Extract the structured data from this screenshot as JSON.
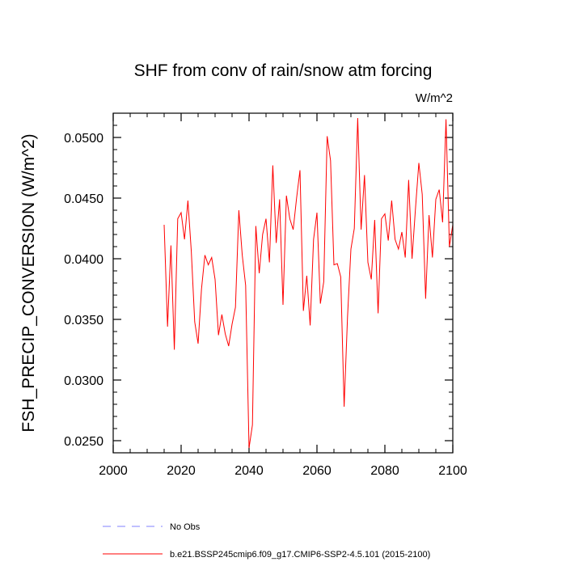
{
  "chart_data": {
    "type": "line",
    "title": "SHF from conv of rain/snow atm forcing",
    "units": "W/m^2",
    "xlabel": "",
    "ylabel": "FSH_PRECIP_CONVERSION  (W/m^2)",
    "xlim": [
      2000,
      2100
    ],
    "ylim": [
      0.024,
      0.052
    ],
    "x_ticks": [
      2000,
      2020,
      2040,
      2060,
      2080,
      2100
    ],
    "x_tick_labels": [
      "2000",
      "2020",
      "2040",
      "2060",
      "2080",
      "2100"
    ],
    "y_ticks": [
      0.025,
      0.03,
      0.035,
      0.04,
      0.045,
      0.05
    ],
    "y_tick_labels": [
      "0.0250",
      "0.0300",
      "0.0350",
      "0.0400",
      "0.0450",
      "0.0500"
    ],
    "x_minor_step": 5,
    "y_minor_step": 0.001,
    "grid": false,
    "legend_position": "bottom-left",
    "series": [
      {
        "name": "No Obs",
        "color": "#8080ff",
        "dashed": true,
        "x": [],
        "values": []
      },
      {
        "name": "b.e21.BSSP245cmip6.f09_g17.CMIP6-SSP2-4.5.101 (2015-2100)",
        "color": "#ff0000",
        "dashed": false,
        "x": [
          2015,
          2016,
          2017,
          2018,
          2019,
          2020,
          2021,
          2022,
          2023,
          2024,
          2025,
          2026,
          2027,
          2028,
          2029,
          2030,
          2031,
          2032,
          2033,
          2034,
          2035,
          2036,
          2037,
          2038,
          2039,
          2040,
          2041,
          2042,
          2043,
          2044,
          2045,
          2046,
          2047,
          2048,
          2049,
          2050,
          2051,
          2052,
          2053,
          2054,
          2055,
          2056,
          2057,
          2058,
          2059,
          2060,
          2061,
          2062,
          2063,
          2064,
          2065,
          2066,
          2067,
          2068,
          2069,
          2070,
          2071,
          2072,
          2073,
          2074,
          2075,
          2076,
          2077,
          2078,
          2079,
          2080,
          2081,
          2082,
          2083,
          2084,
          2085,
          2086,
          2087,
          2088,
          2089,
          2090,
          2091,
          2092,
          2093,
          2094,
          2095,
          2096,
          2097,
          2098,
          2099,
          2100
        ],
        "values": [
          0.0428,
          0.0344,
          0.0411,
          0.0325,
          0.0433,
          0.0438,
          0.0416,
          0.0448,
          0.0406,
          0.0348,
          0.033,
          0.0375,
          0.0403,
          0.0395,
          0.0401,
          0.0383,
          0.0337,
          0.0354,
          0.0338,
          0.0328,
          0.0346,
          0.036,
          0.044,
          0.0403,
          0.0378,
          0.0244,
          0.0263,
          0.0427,
          0.0388,
          0.042,
          0.0433,
          0.0397,
          0.0477,
          0.0413,
          0.0449,
          0.0362,
          0.0452,
          0.0433,
          0.0424,
          0.045,
          0.0473,
          0.0357,
          0.0386,
          0.0345,
          0.0416,
          0.0438,
          0.0363,
          0.0381,
          0.0501,
          0.0481,
          0.0395,
          0.0396,
          0.0385,
          0.0278,
          0.0352,
          0.0408,
          0.0425,
          0.0516,
          0.0424,
          0.0469,
          0.0397,
          0.0383,
          0.0432,
          0.0355,
          0.0433,
          0.0437,
          0.0415,
          0.0448,
          0.0416,
          0.0408,
          0.0422,
          0.0401,
          0.0465,
          0.04,
          0.0441,
          0.0479,
          0.0453,
          0.0367,
          0.0436,
          0.0401,
          0.0449,
          0.0457,
          0.043,
          0.0515,
          0.041,
          0.0428
        ]
      }
    ]
  }
}
